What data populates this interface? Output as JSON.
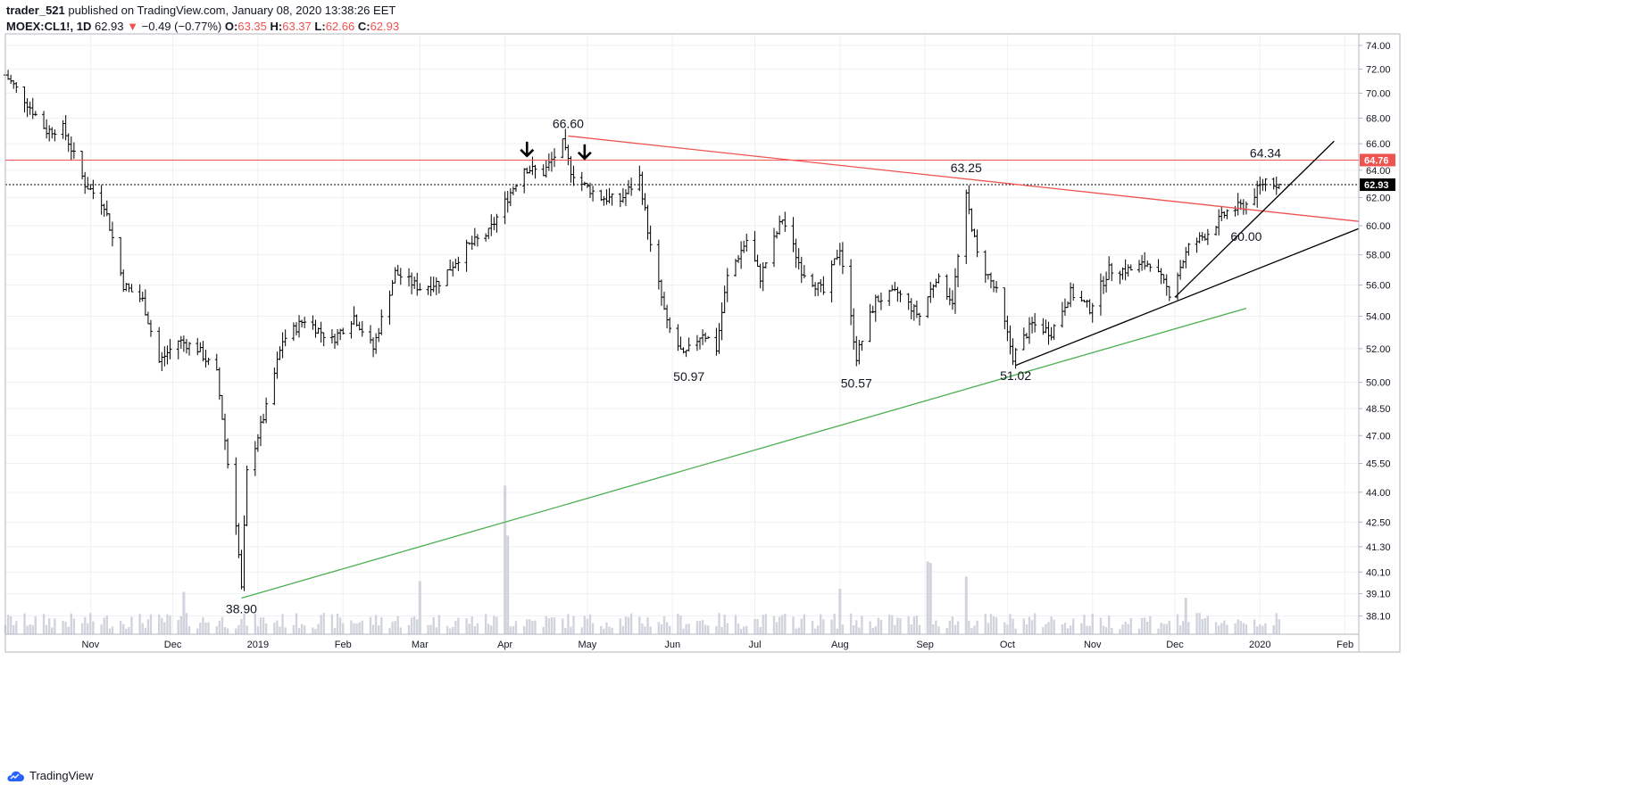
{
  "header": {
    "author": "trader_521",
    "published_text": "published on TradingView.com, January 08, 2020 13:38:26 EET",
    "symbol": "MOEX:CL1!, 1D",
    "last": "62.93",
    "change": "−0.49 (−0.77%)",
    "open_label": "O:",
    "open": "63.35",
    "high_label": "H:",
    "high": "63.37",
    "low_label": "L:",
    "low": "62.66",
    "close_label": "C:",
    "close": "62.93"
  },
  "footer": {
    "brand": "TradingView"
  },
  "colors": {
    "red": "#ef5350",
    "green": "#4caf50",
    "black": "#000000",
    "grid": "#eef0f3",
    "volume": "#d1d4dc"
  },
  "chart_data": {
    "type": "ohlc",
    "y_axis_side": "right",
    "y_scale": "log",
    "ylim": [
      37.3,
      75.0
    ],
    "y_ticks": [
      38.1,
      39.1,
      40.1,
      41.3,
      42.5,
      44.0,
      45.5,
      47.0,
      48.5,
      50.0,
      52.0,
      54.0,
      56.0,
      58.0,
      60.0,
      62.0,
      64.0,
      66.0,
      68.0,
      70.0,
      72.0,
      74.0
    ],
    "x_range": [
      "2018-10-01",
      "2020-02-06"
    ],
    "x_ticks": [
      {
        "label": "Nov",
        "date": "2018-11-01"
      },
      {
        "label": "Dec",
        "date": "2018-12-01"
      },
      {
        "label": "2019",
        "date": "2019-01-01"
      },
      {
        "label": "Feb",
        "date": "2019-02-01"
      },
      {
        "label": "Mar",
        "date": "2019-03-01"
      },
      {
        "label": "Apr",
        "date": "2019-04-01"
      },
      {
        "label": "May",
        "date": "2019-05-01"
      },
      {
        "label": "Jun",
        "date": "2019-06-01"
      },
      {
        "label": "Jul",
        "date": "2019-07-01"
      },
      {
        "label": "Aug",
        "date": "2019-08-01"
      },
      {
        "label": "Sep",
        "date": "2019-09-01"
      },
      {
        "label": "Oct",
        "date": "2019-10-01"
      },
      {
        "label": "Nov",
        "date": "2019-11-01"
      },
      {
        "label": "Dec",
        "date": "2019-12-01"
      },
      {
        "label": "2020",
        "date": "2020-01-01"
      },
      {
        "label": "Feb",
        "date": "2020-02-01"
      }
    ],
    "price_path": [
      [
        "2018-10-01",
        71.5
      ],
      [
        "2018-10-08",
        69.5
      ],
      [
        "2018-10-16",
        67.0
      ],
      [
        "2018-10-22",
        67.2
      ],
      [
        "2018-10-30",
        63.0
      ],
      [
        "2018-11-06",
        61.5
      ],
      [
        "2018-11-13",
        56.0
      ],
      [
        "2018-11-20",
        55.0
      ],
      [
        "2018-11-26",
        51.2
      ],
      [
        "2018-12-03",
        52.5
      ],
      [
        "2018-12-10",
        52.0
      ],
      [
        "2018-12-17",
        50.5
      ],
      [
        "2018-12-21",
        45.5
      ],
      [
        "2018-12-24",
        42.5
      ],
      [
        "2018-12-26",
        39.3
      ],
      [
        "2018-12-28",
        45.0
      ],
      [
        "2019-01-04",
        48.5
      ],
      [
        "2019-01-10",
        52.5
      ],
      [
        "2019-01-18",
        53.8
      ],
      [
        "2019-01-28",
        52.5
      ],
      [
        "2019-02-05",
        54.0
      ],
      [
        "2019-02-12",
        52.0
      ],
      [
        "2019-02-20",
        56.8
      ],
      [
        "2019-03-01",
        55.8
      ],
      [
        "2019-03-08",
        56.2
      ],
      [
        "2019-03-18",
        58.5
      ],
      [
        "2019-03-26",
        59.5
      ],
      [
        "2019-04-02",
        62.0
      ],
      [
        "2019-04-08",
        64.2
      ],
      [
        "2019-04-15",
        63.8
      ],
      [
        "2019-04-22",
        66.0
      ],
      [
        "2019-04-25",
        64.0
      ],
      [
        "2019-04-29",
        63.0
      ],
      [
        "2019-05-06",
        62.0
      ],
      [
        "2019-05-13",
        61.8
      ],
      [
        "2019-05-20",
        63.5
      ],
      [
        "2019-05-24",
        58.5
      ],
      [
        "2019-05-30",
        53.5
      ],
      [
        "2019-06-05",
        51.5
      ],
      [
        "2019-06-12",
        53.0
      ],
      [
        "2019-06-17",
        52.0
      ],
      [
        "2019-06-21",
        56.5
      ],
      [
        "2019-06-28",
        59.0
      ],
      [
        "2019-07-03",
        56.5
      ],
      [
        "2019-07-11",
        60.5
      ],
      [
        "2019-07-18",
        57.0
      ],
      [
        "2019-07-26",
        55.5
      ],
      [
        "2019-08-01",
        58.5
      ],
      [
        "2019-08-07",
        51.5
      ],
      [
        "2019-08-14",
        55.0
      ],
      [
        "2019-08-22",
        55.5
      ],
      [
        "2019-08-30",
        54.0
      ],
      [
        "2019-09-05",
        56.5
      ],
      [
        "2019-09-11",
        55.0
      ],
      [
        "2019-09-16",
        62.0
      ],
      [
        "2019-09-20",
        58.0
      ],
      [
        "2019-09-27",
        55.5
      ],
      [
        "2019-10-03",
        51.5
      ],
      [
        "2019-10-10",
        53.5
      ],
      [
        "2019-10-17",
        53.0
      ],
      [
        "2019-10-24",
        55.5
      ],
      [
        "2019-10-31",
        54.5
      ],
      [
        "2019-11-07",
        57.0
      ],
      [
        "2019-11-15",
        57.0
      ],
      [
        "2019-11-22",
        57.5
      ],
      [
        "2019-11-29",
        55.5
      ],
      [
        "2019-12-06",
        58.5
      ],
      [
        "2019-12-13",
        59.5
      ],
      [
        "2019-12-20",
        61.0
      ],
      [
        "2019-12-27",
        61.5
      ],
      [
        "2020-01-03",
        63.3
      ],
      [
        "2020-01-08",
        62.93
      ]
    ],
    "volume_spikes": [
      [
        "2019-03-01",
        0.35
      ],
      [
        "2019-04-01",
        0.98
      ],
      [
        "2019-04-02",
        0.65
      ],
      [
        "2019-09-02",
        0.48
      ],
      [
        "2019-09-03",
        0.47
      ],
      [
        "2019-09-16",
        0.38
      ],
      [
        "2019-12-05",
        0.24
      ],
      [
        "2018-12-05",
        0.28
      ],
      [
        "2019-08-01",
        0.3
      ]
    ],
    "horizontal_lines": [
      {
        "price": 64.76,
        "color": "#ef5350",
        "style": "solid",
        "label": "64.76"
      },
      {
        "price": 62.93,
        "color": "#000000",
        "style": "dotted",
        "label": "62.93"
      }
    ],
    "trendlines": [
      {
        "from": [
          "2019-04-24",
          66.6
        ],
        "to": [
          "2020-02-06",
          60.3
        ],
        "color": "#ef5350"
      },
      {
        "from": [
          "2018-12-26",
          38.9
        ],
        "to": [
          "2019-12-27",
          54.5
        ],
        "color": "#4caf50"
      },
      {
        "from": [
          "2019-10-04",
          51.0
        ],
        "to": [
          "2020-02-06",
          59.8
        ],
        "color": "#000000"
      },
      {
        "from": [
          "2019-12-01",
          55.2
        ],
        "to": [
          "2020-01-28",
          66.2
        ],
        "color": "#000000"
      }
    ],
    "annotations": [
      {
        "text": "66.60",
        "date": "2019-04-24",
        "price": 66.6,
        "pos": "above"
      },
      {
        "text": "63.25",
        "date": "2019-09-16",
        "price": 63.25,
        "pos": "above"
      },
      {
        "text": "64.34",
        "date": "2020-01-03",
        "price": 64.34,
        "pos": "above"
      },
      {
        "text": "50.97",
        "date": "2019-06-07",
        "price": 50.97,
        "pos": "below"
      },
      {
        "text": "50.57",
        "date": "2019-08-07",
        "price": 50.57,
        "pos": "below"
      },
      {
        "text": "51.02",
        "date": "2019-10-04",
        "price": 51.02,
        "pos": "below"
      },
      {
        "text": "60.00",
        "date": "2019-12-27",
        "price": 60.0,
        "pos": "below"
      },
      {
        "text": "38.90",
        "date": "2018-12-26",
        "price": 38.9,
        "pos": "below"
      }
    ],
    "arrows": [
      {
        "date": "2019-04-09",
        "price": 64.8
      },
      {
        "date": "2019-04-30",
        "price": 64.6
      }
    ]
  }
}
